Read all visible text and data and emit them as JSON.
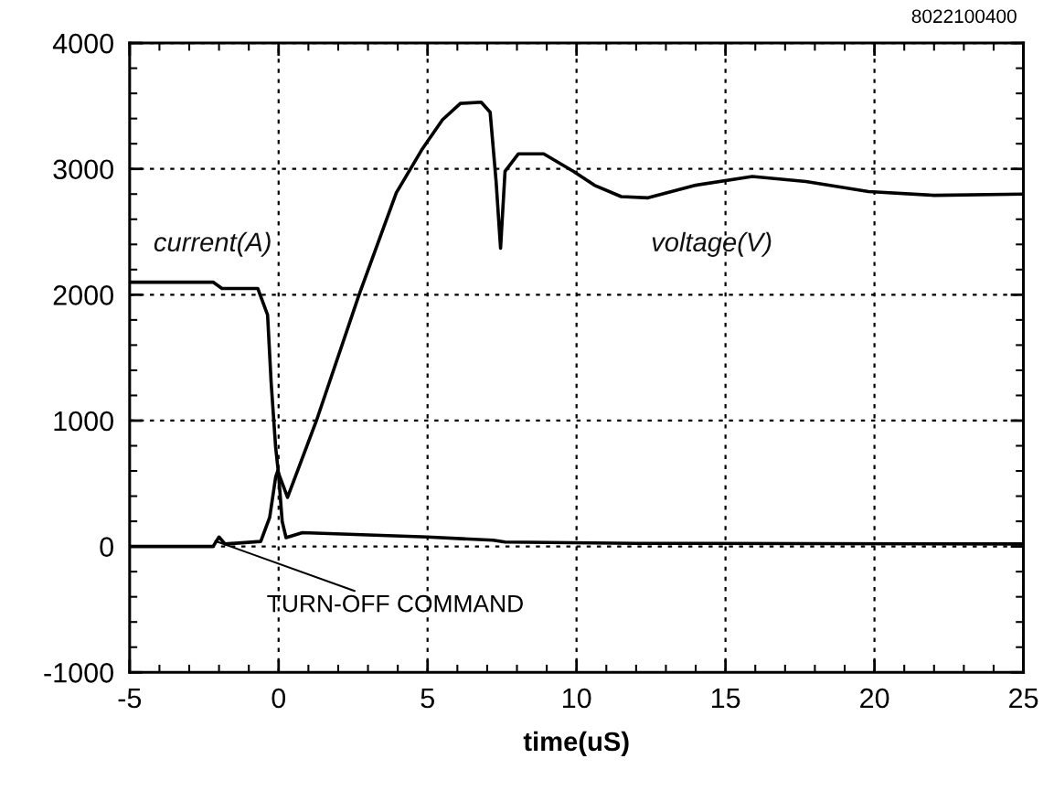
{
  "chart_data": {
    "type": "line",
    "xlabel": "time(uS)",
    "annotations": [
      "8022100400",
      {
        "text": "TURN-OFF COMMAND",
        "x": -2.2,
        "y": 50
      }
    ],
    "x": [
      -5,
      -2.2,
      -1.9,
      -0.7,
      -0.37,
      -0.25,
      -0.1,
      0,
      0.12,
      0.25,
      0.8,
      5,
      7.2,
      7.6,
      12,
      25
    ],
    "series": [
      {
        "name": "current(A)",
        "color": "#000000",
        "values": [
          2100,
          2100,
          2050,
          2050,
          1840,
          1300,
          790,
          570,
          200,
          70,
          110,
          75,
          50,
          35,
          25,
          20
        ]
      },
      {
        "name": "voltage(V)",
        "color": "#000000",
        "x": [
          -5,
          -2.2,
          -2,
          -1.8,
          -0.6,
          -0.3,
          -0.1,
          -0.03,
          0.3,
          1.27,
          2.7,
          3.95,
          4.8,
          5.5,
          6.1,
          6.8,
          7.1,
          7.3,
          7.45,
          7.6,
          8.05,
          8.9,
          9.9,
          10.6,
          11.5,
          12.4,
          14,
          15.9,
          17.7,
          19.8,
          22,
          25
        ],
        "values": [
          0,
          0,
          75,
          20,
          40,
          230,
          550,
          600,
          390,
          1000,
          2000,
          2810,
          3150,
          3390,
          3520,
          3530,
          3450,
          2900,
          2370,
          2980,
          3120,
          3120,
          2980,
          2870,
          2780,
          2770,
          2870,
          2940,
          2900,
          2820,
          2790,
          2800
        ]
      }
    ],
    "xlim": [
      -5,
      25
    ],
    "ylim": [
      -1000,
      4000
    ],
    "xticks": [
      -5,
      0,
      5,
      10,
      15,
      20,
      25
    ],
    "yticks": [
      -1000,
      0,
      1000,
      2000,
      3000,
      4000
    ],
    "grid": true,
    "line_style": "solid",
    "marker": "none"
  }
}
